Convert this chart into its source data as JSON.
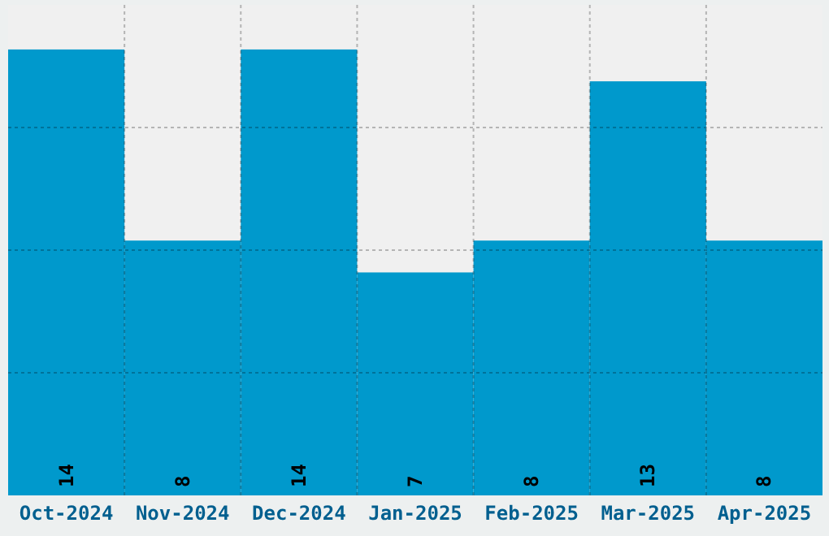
{
  "chart_data": {
    "type": "bar",
    "categories": [
      "Oct-2024",
      "Nov-2024",
      "Dec-2024",
      "Jan-2025",
      "Feb-2025",
      "Mar-2025",
      "Apr-2025"
    ],
    "values": [
      14,
      8,
      14,
      7,
      8,
      13,
      8
    ],
    "color": "#0099cc",
    "data_labels": true,
    "ylim": [
      0,
      15.4
    ],
    "yticks": [
      {
        "value": 3.85,
        "label": null
      },
      {
        "value": 7.7,
        "label": null
      },
      {
        "value": 11.55,
        "label": null
      }
    ],
    "grid": true,
    "tick_labels": "x"
  }
}
